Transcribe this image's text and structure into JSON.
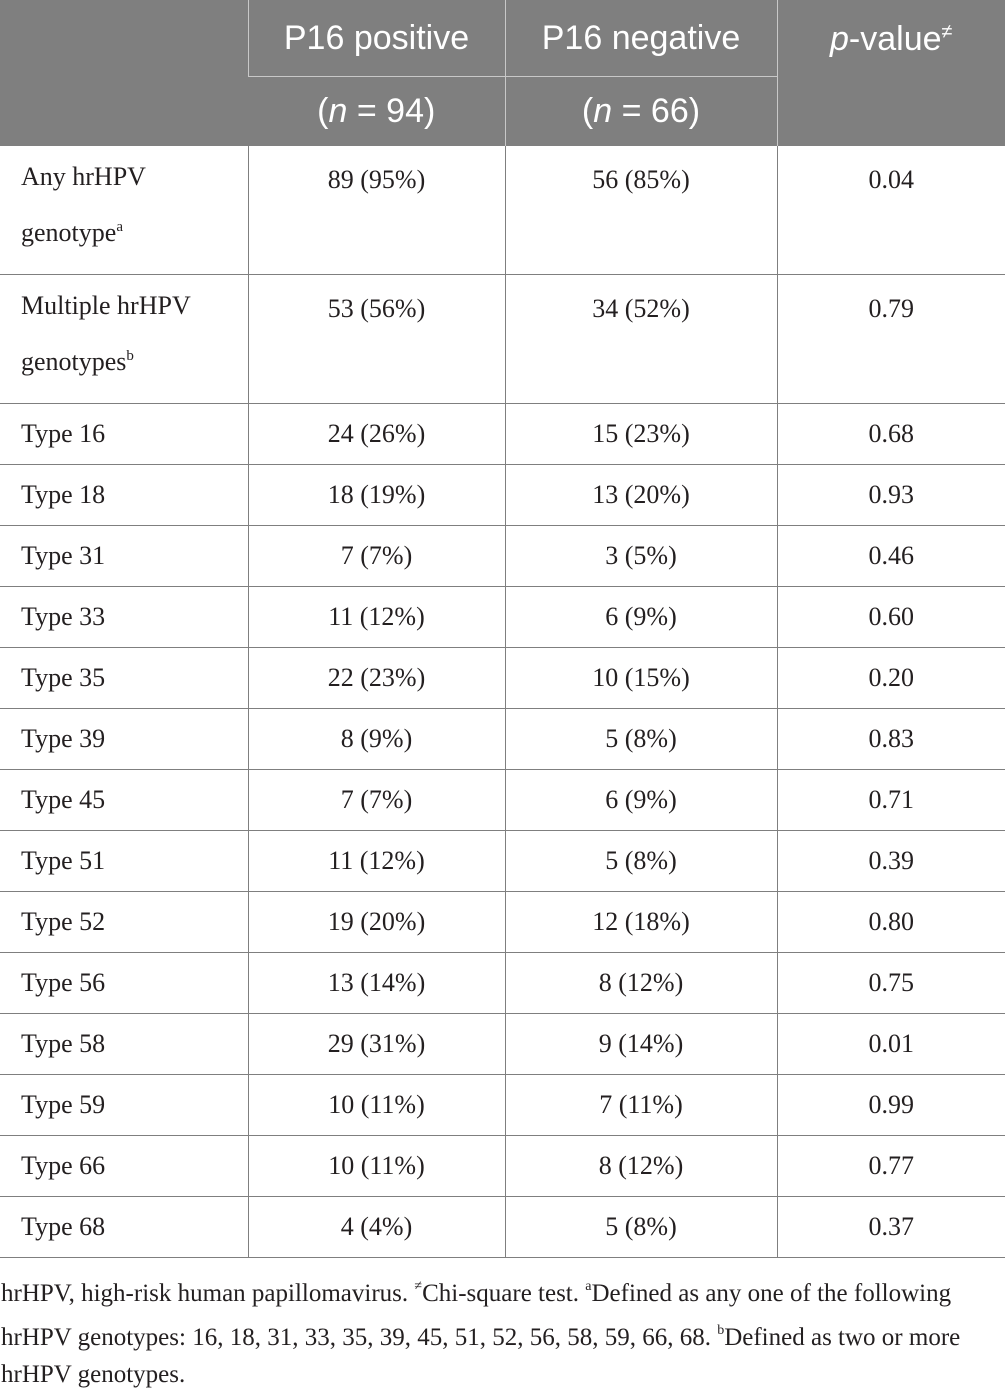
{
  "header": {
    "col1": "",
    "col2_line1": "P16 positive",
    "col2_n_italic": "n",
    "col2_n_rest": " = 94)",
    "col2_open": "(",
    "col3_line1": "P16 negative",
    "col3_open": "(",
    "col3_n_italic": "n",
    "col3_n_rest": " = 66)",
    "col4_p_italic": "p",
    "col4_rest": "-value",
    "col4_sup": "≠"
  },
  "rows": [
    {
      "label": "Any hrHPV genotype",
      "sup": "a",
      "p16_pos": "89 (95%)",
      "p16_neg": "56 (85%)",
      "p": "0.04"
    },
    {
      "label": "Multiple hrHPV genotypes",
      "sup": "b",
      "p16_pos": "53 (56%)",
      "p16_neg": "34 (52%)",
      "p": "0.79"
    },
    {
      "label": "Type 16",
      "p16_pos": "24 (26%)",
      "p16_neg": "15 (23%)",
      "p": "0.68"
    },
    {
      "label": "Type 18",
      "p16_pos": "18 (19%)",
      "p16_neg": "13 (20%)",
      "p": "0.93"
    },
    {
      "label": "Type 31",
      "p16_pos": "7 (7%)",
      "p16_neg": "3 (5%)",
      "p": "0.46"
    },
    {
      "label": "Type 33",
      "p16_pos": "11 (12%)",
      "p16_neg": "6 (9%)",
      "p": "0.60"
    },
    {
      "label": "Type 35",
      "p16_pos": "22 (23%)",
      "p16_neg": "10 (15%)",
      "p": "0.20"
    },
    {
      "label": "Type 39",
      "p16_pos": "8 (9%)",
      "p16_neg": "5 (8%)",
      "p": "0.83"
    },
    {
      "label": "Type 45",
      "p16_pos": "7 (7%)",
      "p16_neg": "6 (9%)",
      "p": "0.71"
    },
    {
      "label": "Type 51",
      "p16_pos": "11 (12%)",
      "p16_neg": "5 (8%)",
      "p": "0.39"
    },
    {
      "label": "Type 52",
      "p16_pos": "19 (20%)",
      "p16_neg": "12 (18%)",
      "p": "0.80"
    },
    {
      "label": "Type 56",
      "p16_pos": "13 (14%)",
      "p16_neg": "8 (12%)",
      "p": "0.75"
    },
    {
      "label": "Type 58",
      "p16_pos": "29 (31%)",
      "p16_neg": "9 (14%)",
      "p": "0.01"
    },
    {
      "label": "Type 59",
      "p16_pos": "10 (11%)",
      "p16_neg": "7 (11%)",
      "p": "0.99"
    },
    {
      "label": "Type 66",
      "p16_pos": "10 (11%)",
      "p16_neg": "8 (12%)",
      "p": "0.77"
    },
    {
      "label": "Type 68",
      "p16_pos": "4 (4%)",
      "p16_neg": "5 (8%)",
      "p": "0.37"
    }
  ],
  "footnote": {
    "part1": "hrHPV, high-risk human papillomavirus. ",
    "sup_neq": "≠",
    "part2": "Chi-square test. ",
    "sup_a": "a",
    "part3": "Defined as any one of the following hrHPV genotypes: 16, 18, 31, 33, 35, 39, 45, 51, 52, 56, 58, 59, 66, 68. ",
    "sup_b": "b",
    "part4": "Defined as two or more hrHPV genotypes."
  }
}
